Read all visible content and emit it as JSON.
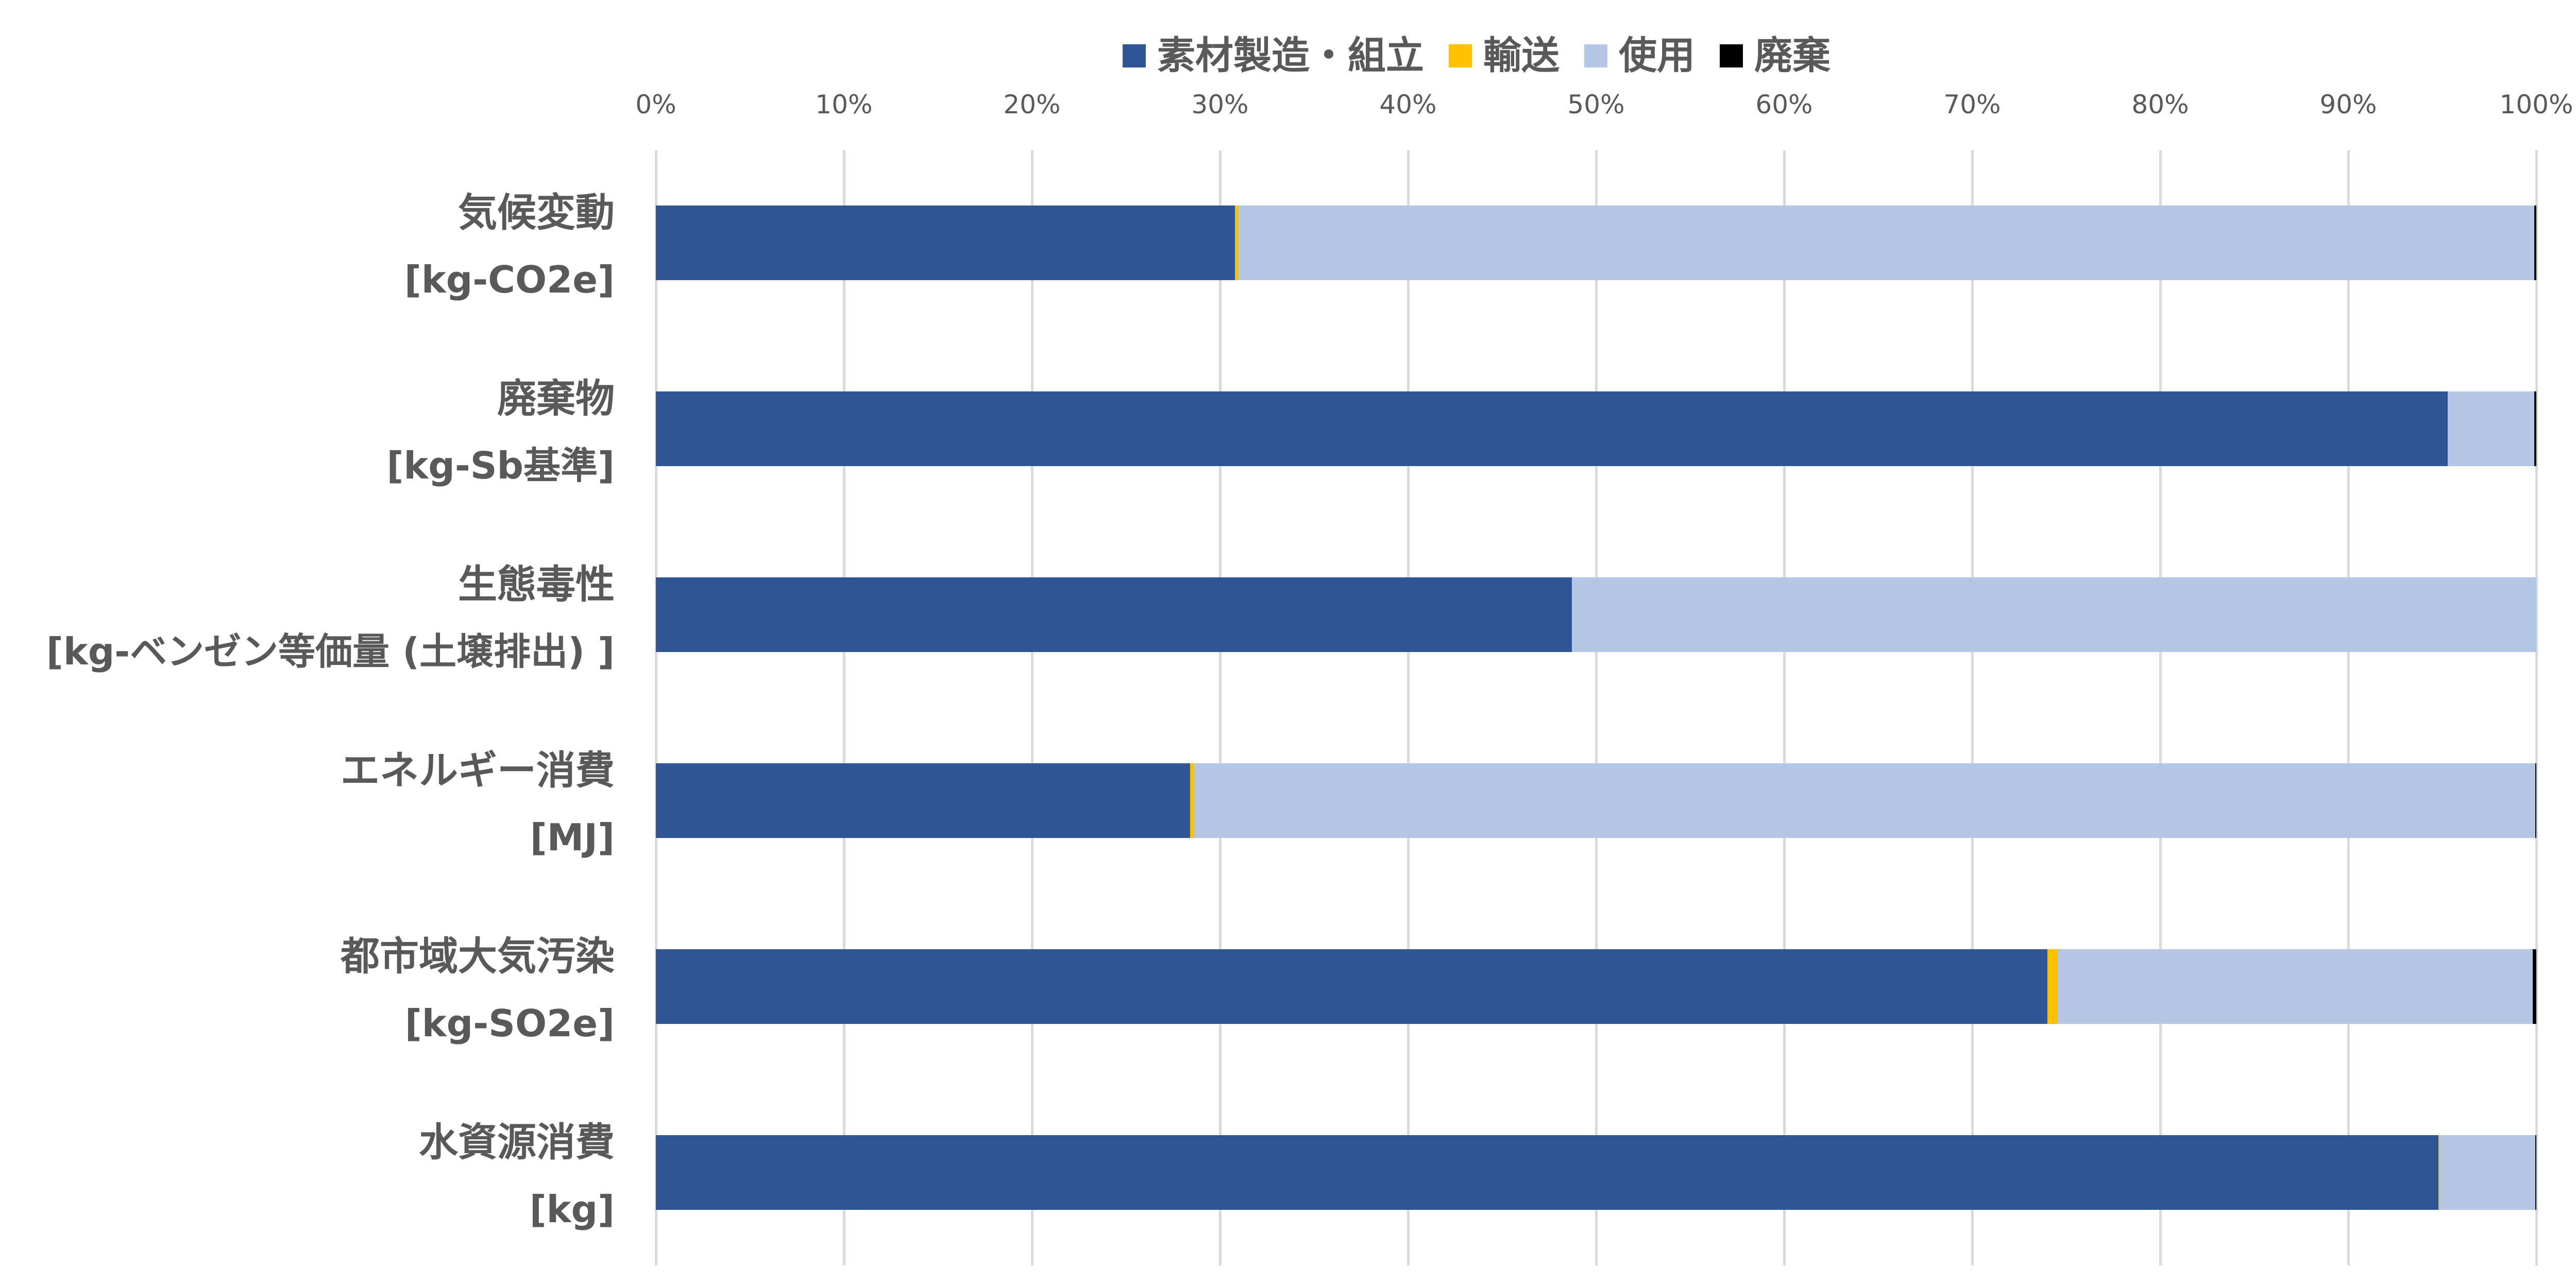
{
  "chart_data": {
    "type": "bar",
    "orientation": "horizontal",
    "stacked": "percent",
    "title": "",
    "xlabel": "",
    "ylabel": "",
    "xlim": [
      0,
      100
    ],
    "grid": true,
    "legend_position": "top",
    "x_ticks": [
      "0%",
      "10%",
      "20%",
      "30%",
      "40%",
      "50%",
      "60%",
      "70%",
      "80%",
      "90%",
      "100%"
    ],
    "categories": [
      {
        "name": "気候変動",
        "unit": "[kg-CO2e]"
      },
      {
        "name": "廃棄物",
        "unit": "[kg-Sb基準]"
      },
      {
        "name": "生態毒性",
        "unit": "[kg-ベンゼン等価量 (土壌排出) ]"
      },
      {
        "name": "エネルギー消費",
        "unit": "[MJ]"
      },
      {
        "name": "都市域大気汚染",
        "unit": "[kg-SO2e]"
      },
      {
        "name": "水資源消費",
        "unit": "[kg]"
      }
    ],
    "series": [
      {
        "name": "素材製造・組立",
        "color": "#2F5597",
        "values": [
          30.8,
          95.3,
          48.7,
          28.4,
          74.0,
          94.8
        ]
      },
      {
        "name": "輸送",
        "color": "#FFC000",
        "values": [
          0.2,
          0.0,
          0.0,
          0.2,
          0.55,
          0.05
        ]
      },
      {
        "name": "使用",
        "color": "#B4C7E7",
        "values": [
          68.9,
          4.6,
          51.3,
          71.35,
          25.25,
          5.1
        ]
      },
      {
        "name": "廃棄",
        "color": "#000000",
        "values": [
          0.1,
          0.1,
          0.0,
          0.05,
          0.2,
          0.05
        ]
      }
    ]
  }
}
